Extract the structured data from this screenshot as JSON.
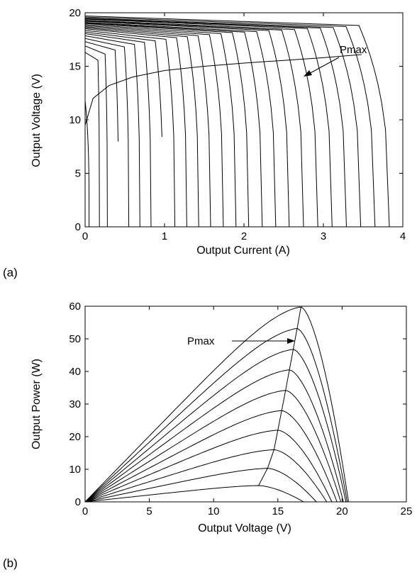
{
  "chart_data": [
    {
      "type": "line",
      "panel_label": "(a)",
      "title": "",
      "xlabel": "Output Current (A)",
      "ylabel": "Output Voltage (V)",
      "xlim": [
        0,
        4
      ],
      "ylim": [
        0,
        20
      ],
      "xticks": [
        "0",
        "1",
        "2",
        "3",
        "4"
      ],
      "yticks": [
        "0",
        "5",
        "10",
        "15",
        "20"
      ],
      "grid": false,
      "annotation": "Pmax",
      "series_note": "family of I-V curves, one per irradiance level",
      "isc_values": [
        0.05,
        0.18,
        0.28,
        0.42,
        0.55,
        0.69,
        0.83,
        0.98,
        1.13,
        1.28,
        1.43,
        1.58,
        1.74,
        1.9,
        2.06,
        2.23,
        2.4,
        2.57,
        2.75,
        2.93,
        3.11,
        3.29,
        3.47,
        3.65,
        3.83
      ],
      "voc_values": [
        11.8,
        16.3,
        16.9,
        17.3,
        17.6,
        17.85,
        18.05,
        18.2,
        18.35,
        18.5,
        18.6,
        18.7,
        18.8,
        18.9,
        19.0,
        19.05,
        19.1,
        19.2,
        19.25,
        19.3,
        19.4,
        19.45,
        19.5,
        19.6,
        19.7
      ],
      "pmax_line": {
        "x": [
          0,
          0.1,
          0.3,
          0.6,
          1.0,
          1.5,
          2.0,
          2.5,
          3.0,
          3.48
        ],
        "y": [
          9.5,
          12.0,
          13.2,
          14.0,
          14.6,
          15.0,
          15.3,
          15.55,
          15.8,
          16.1
        ]
      }
    },
    {
      "type": "line",
      "panel_label": "(b)",
      "title": "",
      "xlabel": "Output Voltage (V)",
      "ylabel": "Output Power (W)",
      "xlim": [
        0,
        25
      ],
      "ylim": [
        0,
        60
      ],
      "xticks": [
        "0",
        "5",
        "10",
        "15",
        "20",
        "25"
      ],
      "yticks": [
        "0",
        "10",
        "20",
        "30",
        "40",
        "50",
        "60"
      ],
      "grid": false,
      "annotation": "Pmax",
      "series_note": "family of P-V curves, one per irradiance level",
      "peaks": [
        {
          "vmp": 13.5,
          "pmax": 5,
          "voc": 17.0
        },
        {
          "vmp": 14.2,
          "pmax": 10.3,
          "voc": 18.0
        },
        {
          "vmp": 14.7,
          "pmax": 16.0,
          "voc": 18.8
        },
        {
          "vmp": 15.0,
          "pmax": 22.0,
          "voc": 19.2
        },
        {
          "vmp": 15.3,
          "pmax": 28.0,
          "voc": 19.6
        },
        {
          "vmp": 15.6,
          "pmax": 34.2,
          "voc": 19.9
        },
        {
          "vmp": 15.9,
          "pmax": 40.5,
          "voc": 20.1
        },
        {
          "vmp": 16.2,
          "pmax": 46.8,
          "voc": 20.3
        },
        {
          "vmp": 16.5,
          "pmax": 53.2,
          "voc": 20.4
        },
        {
          "vmp": 16.8,
          "pmax": 59.8,
          "voc": 20.5
        }
      ]
    }
  ]
}
